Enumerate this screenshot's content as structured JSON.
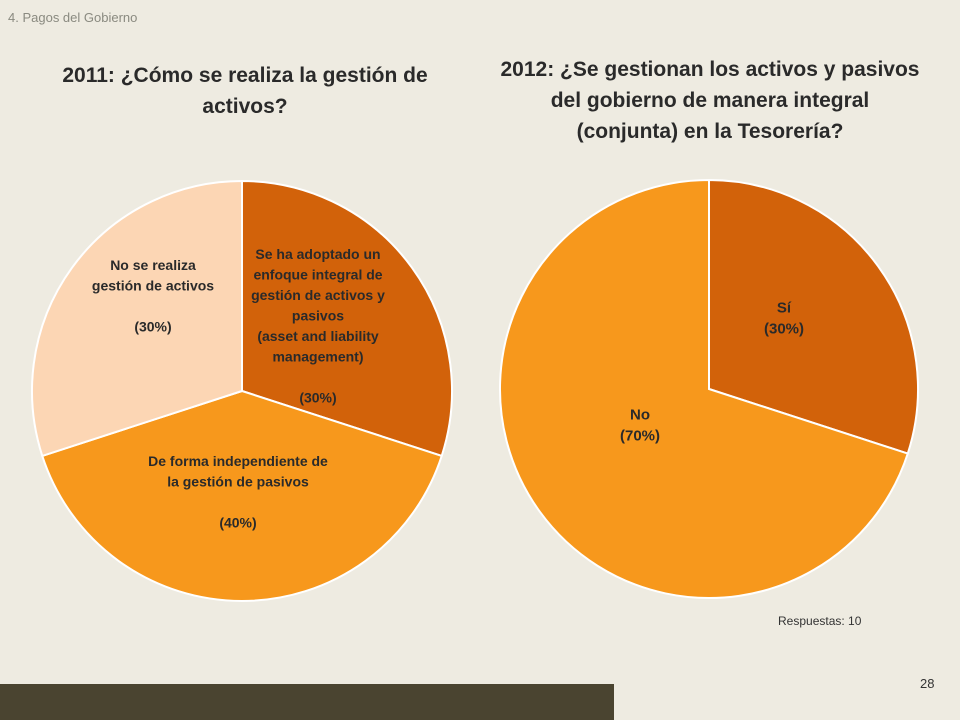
{
  "header": {
    "section": "4. Pagos del Gobierno"
  },
  "footer": {
    "responses": "Respuestas: 10",
    "page_number": "28"
  },
  "colors": {
    "background": "#eeebe1",
    "dark_orange": "#d2620a",
    "orange": "#f7981c",
    "peach": "#fcd6b4",
    "footer_bar": "#4a4430"
  },
  "chart_data": [
    {
      "type": "pie",
      "title": "2011: ¿Cómo se realiza la  gestión de activos?",
      "slices": [
        {
          "label": "Se ha adoptado un enfoque integral de gestión de activos y pasivos (asset and liability management)",
          "value": 30,
          "value_label": "(30%)",
          "color": "#d2620a",
          "label_lines": [
            "Se ha adoptado un",
            "enfoque integral de",
            "gestión de activos y",
            "pasivos",
            "(asset and liability",
            "management)",
            "",
            "(30%)"
          ]
        },
        {
          "label": "De forma independiente de la gestión de pasivos",
          "value": 40,
          "value_label": "(40%)",
          "color": "#f7981c",
          "label_lines": [
            "De forma independiente de",
            "la gestión de pasivos",
            "",
            "(40%)"
          ]
        },
        {
          "label": "No se realiza gestión de activos",
          "value": 30,
          "value_label": "(30%)",
          "color": "#fcd6b4",
          "label_lines": [
            "No se realiza",
            "gestión de activos",
            "",
            "(30%)"
          ]
        }
      ]
    },
    {
      "type": "pie",
      "title": "2012: ¿Se gestionan los activos y pasivos del gobierno de manera integral (conjunta) en la Tesorería?",
      "slices": [
        {
          "label": "Sí",
          "value": 30,
          "value_label": "(30%)",
          "color": "#d2620a",
          "label_lines": [
            "Sí",
            "(30%)"
          ]
        },
        {
          "label": "No",
          "value": 70,
          "value_label": "(70%)",
          "color": "#f7981c",
          "label_lines": [
            "No",
            "(70%)"
          ]
        }
      ]
    }
  ]
}
